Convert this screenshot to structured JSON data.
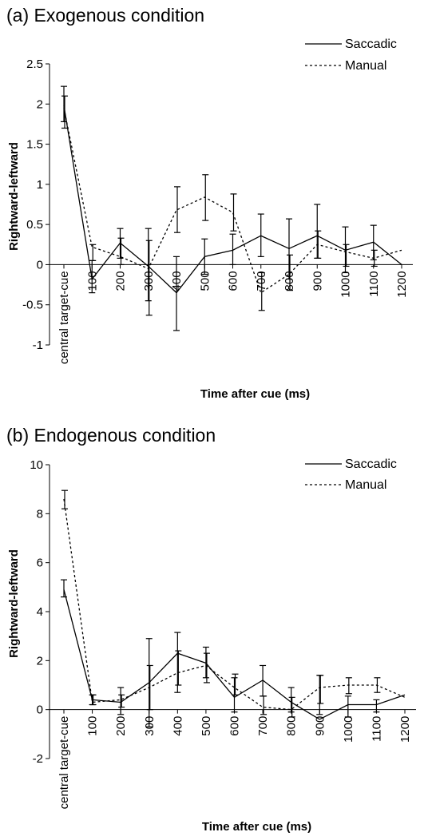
{
  "charts": {
    "a": {
      "title": "(a) Exogenous condition"
    },
    "b": {
      "title": "(b) Endogenous condition"
    }
  },
  "chart_data": [
    {
      "type": "line",
      "title": "(a) Exogenous condition",
      "xlabel": "Time after cue (ms)",
      "ylabel": "Rightward-leftward",
      "categories": [
        "central target-cue",
        "100",
        "200",
        "300",
        "400",
        "500",
        "600",
        "700",
        "800",
        "900",
        "1000",
        "1100",
        "1200"
      ],
      "ylim": [
        -1,
        2.5
      ],
      "yticks": [
        "-1",
        "-0.5",
        "0",
        "0.5",
        "1",
        "1.5",
        "2",
        "2.5"
      ],
      "legend_position": "top-right",
      "grid": false,
      "series": [
        {
          "name": "Saccadic",
          "style": "solid",
          "values": [
            1.98,
            -0.18,
            0.27,
            -0.02,
            -0.35,
            0.1,
            0.18,
            0.36,
            0.2,
            0.36,
            0.18,
            0.28,
            0.0
          ],
          "error_low": [
            1.78,
            -0.35,
            0.08,
            -0.45,
            -0.82,
            -0.12,
            0.0,
            0.1,
            -0.18,
            0.08,
            -0.1,
            0.06,
            null
          ],
          "error_high": [
            2.22,
            0.05,
            0.45,
            0.45,
            0.1,
            0.32,
            0.38,
            0.63,
            0.57,
            0.75,
            0.47,
            0.49,
            null
          ]
        },
        {
          "name": "Manual",
          "style": "dotted",
          "values": [
            1.95,
            0.22,
            0.1,
            -0.05,
            0.68,
            0.84,
            0.65,
            -0.35,
            -0.12,
            0.25,
            0.16,
            0.08,
            0.18
          ],
          "error_low": [
            1.7,
            0.05,
            0.0,
            -0.63,
            0.4,
            0.55,
            0.42,
            -0.57,
            -0.32,
            0.08,
            -0.02,
            -0.02,
            null
          ],
          "error_high": [
            2.1,
            0.25,
            0.33,
            0.3,
            0.97,
            1.12,
            0.88,
            -0.1,
            0.12,
            0.42,
            0.25,
            0.18,
            null
          ]
        }
      ]
    },
    {
      "type": "line",
      "title": "(b) Endogenous condition",
      "xlabel": "Time after cue (ms)",
      "ylabel": "Rightward-leftward",
      "categories": [
        "central target-cue",
        "100",
        "200",
        "300",
        "400",
        "500",
        "600",
        "700",
        "800",
        "900",
        "1000",
        "1100",
        "1200"
      ],
      "ylim": [
        -2,
        10
      ],
      "yticks": [
        "-2",
        "0",
        "2",
        "4",
        "6",
        "8",
        "10"
      ],
      "legend_position": "top-right",
      "grid": false,
      "series": [
        {
          "name": "Saccadic",
          "style": "solid",
          "values": [
            4.9,
            0.4,
            0.3,
            1.1,
            2.3,
            1.9,
            0.5,
            1.2,
            0.3,
            -0.4,
            0.2,
            0.2,
            0.6
          ],
          "error_low": [
            4.6,
            0.2,
            -0.2,
            -0.7,
            0.7,
            1.3,
            -0.1,
            0.55,
            -0.1,
            -0.2,
            -0.3,
            -0.1,
            null
          ],
          "error_high": [
            5.3,
            0.6,
            0.9,
            2.9,
            3.15,
            2.55,
            1.3,
            1.8,
            0.9,
            1.4,
            0.55,
            0.4,
            null
          ]
        },
        {
          "name": "Manual",
          "style": "dotted",
          "values": [
            8.6,
            0.3,
            0.4,
            0.9,
            1.5,
            1.8,
            0.9,
            0.1,
            0.0,
            0.9,
            1.0,
            1.0,
            0.5
          ],
          "error_low": [
            8.2,
            0.2,
            0.1,
            0.0,
            1.0,
            1.1,
            0.6,
            -0.2,
            -0.3,
            0.25,
            0.65,
            0.7,
            null
          ],
          "error_high": [
            8.95,
            0.6,
            0.6,
            1.8,
            2.4,
            2.3,
            1.45,
            0.55,
            0.5,
            1.4,
            1.3,
            1.3,
            null
          ]
        }
      ]
    }
  ]
}
